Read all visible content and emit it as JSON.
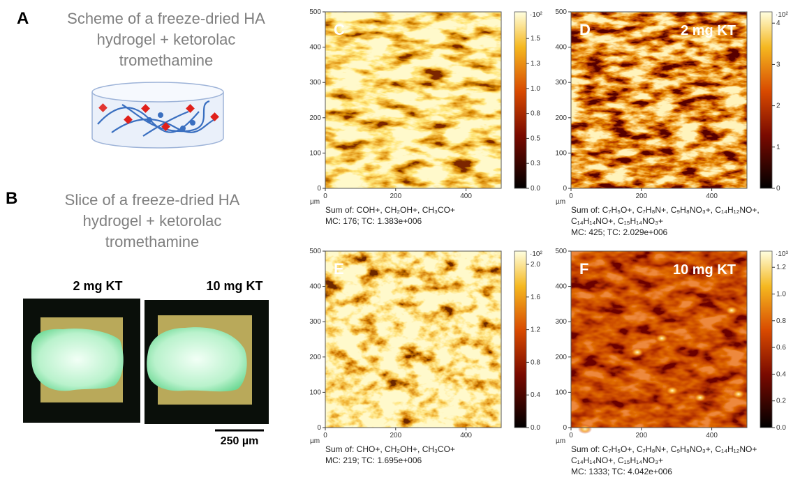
{
  "panel_a": {
    "letter": "A",
    "caption": [
      "Scheme of a freeze-dried HA",
      "hydrogel + ketorolac",
      "tromethamine"
    ]
  },
  "panel_b": {
    "letter": "B",
    "caption": [
      "Slice of a freeze-dried HA",
      "hydrogel + ketorolac",
      "tromethamine"
    ],
    "samples": [
      "2 mg KT",
      "10 mg KT"
    ],
    "scale_bar": "250 µm"
  },
  "maps": [
    {
      "letter": "C",
      "y_ticks": [
        "0",
        "100",
        "200",
        "300",
        "400",
        "500"
      ],
      "x_ticks": [
        "0",
        "200",
        "400"
      ],
      "unit": "µm",
      "colorbar_exponent": "·10²",
      "colorbar_ticks": [
        "0.0",
        "0.3",
        "0.5",
        "0.8",
        "1.0",
        "1.3",
        "1.5"
      ],
      "caption": [
        "Sum of: COH+, CH₂OH+, CH₃CO+",
        "MC: 176; TC: 1.383e+006"
      ]
    },
    {
      "letter": "D",
      "label": "2 mg KT",
      "y_ticks": [
        "0",
        "100",
        "200",
        "300",
        "400",
        "500"
      ],
      "x_ticks": [
        "0",
        "200",
        "400"
      ],
      "unit": "µm",
      "colorbar_exponent": "·10²",
      "colorbar_ticks": [
        "0",
        "1",
        "2",
        "3",
        "4"
      ],
      "caption": [
        "Sum of: C₇H₅O+, C₇H₈N+, C₉H₈NO₃+, C₁₄H₁₂NO+,",
        "C₁₄H₁₄NO+, C₁₅H₁₄NO₃+",
        "MC: 425; TC: 2.029e+006"
      ]
    },
    {
      "letter": "E",
      "y_ticks": [
        "0",
        "100",
        "200",
        "300",
        "400",
        "500"
      ],
      "x_ticks": [
        "0",
        "200",
        "400"
      ],
      "unit": "µm",
      "colorbar_exponent": "·10²",
      "colorbar_ticks": [
        "0.0",
        "0.4",
        "0.8",
        "1.2",
        "1.6",
        "2.0"
      ],
      "caption": [
        "Sum of: CHO+, CH₂OH+, CH₃CO+",
        "MC: 219; TC: 1.695e+006"
      ]
    },
    {
      "letter": "F",
      "label": "10 mg KT",
      "y_ticks": [
        "0",
        "100",
        "200",
        "300",
        "400",
        "500"
      ],
      "x_ticks": [
        "0",
        "200",
        "400"
      ],
      "unit": "µm",
      "colorbar_exponent": "·10³",
      "colorbar_ticks": [
        "0.0",
        "0.2",
        "0.4",
        "0.6",
        "0.8",
        "1.0",
        "1.2"
      ],
      "caption": [
        "Sum of: C₇H₅O+, C₇H₈N+, C₉H₈NO₃+, C₁₄H₁₂NO+",
        "C₁₄H₁₄NO+, C₁₅H₁₄NO₃+",
        "MC: 1333; TC: 4.042e+006"
      ]
    }
  ]
}
